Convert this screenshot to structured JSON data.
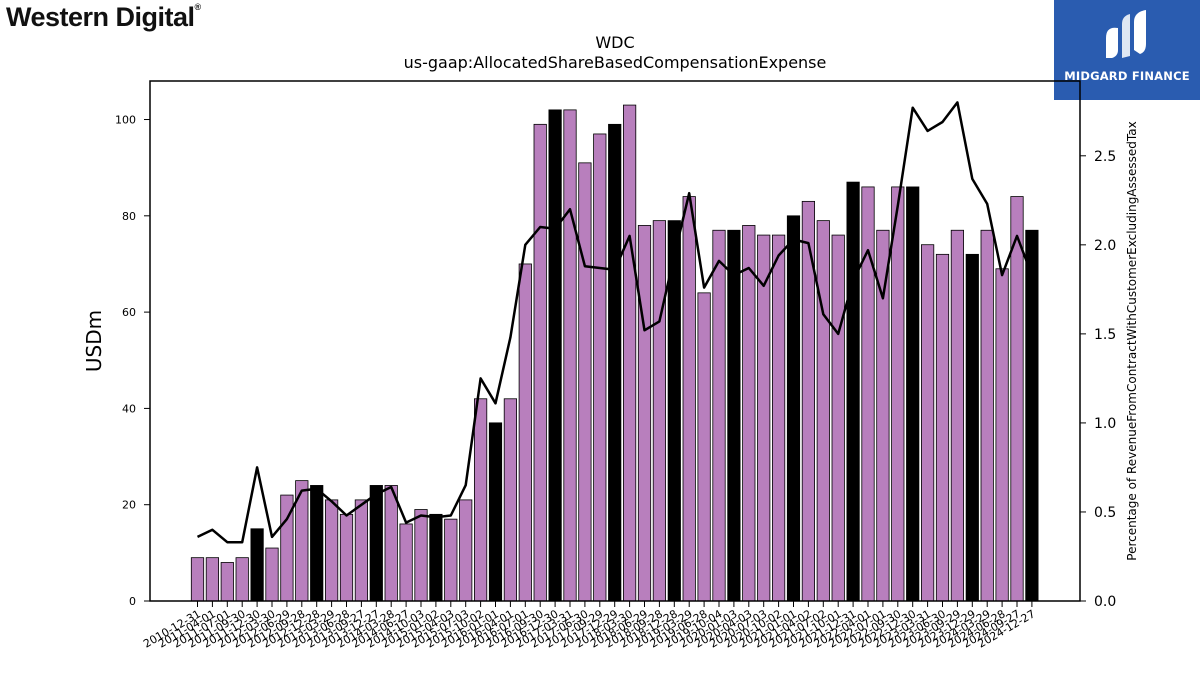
{
  "logo": {
    "company": "Western Digital",
    "company_mark": "®"
  },
  "brand": {
    "name": "MIDGARD FINANCE",
    "background": "#2a5cb0"
  },
  "chart_data": {
    "type": "bar",
    "title": "WDC",
    "subtitle": "us-gaap:AllocatedShareBasedCompensationExpense",
    "ylabel": "USDm",
    "y2label": "Percentage of RevenueFromContractWithCustomerExcludingAssessedTax",
    "ylim": [
      0,
      108
    ],
    "y2lim": [
      0,
      2.92
    ],
    "yticks": [
      0,
      20,
      40,
      60,
      80,
      100
    ],
    "y2ticks": [
      "0.0",
      "0.5",
      "1.0",
      "1.5",
      "2.0",
      "2.5"
    ],
    "grid": false,
    "colors": {
      "bar_default": "#b87fbd",
      "bar_highlight": "#000000",
      "line": "#000000"
    },
    "categories": [
      "2010-12-31",
      "2011-04-01",
      "2011-07-01",
      "2011-09-30",
      "2011-12-30",
      "2012-03-30",
      "2012-06-29",
      "2012-09-28",
      "2012-12-28",
      "2013-03-29",
      "2013-06-28",
      "2013-09-27",
      "2013-12-27",
      "2014-03-28",
      "2014-06-27",
      "2014-10-03",
      "2015-01-02",
      "2015-04-03",
      "2015-07-03",
      "2015-10-02",
      "2016-01-01",
      "2016-04-01",
      "2016-07-01",
      "2016-09-30",
      "2016-12-30",
      "2017-03-31",
      "2017-06-30",
      "2017-09-29",
      "2017-12-29",
      "2018-03-30",
      "2018-06-29",
      "2018-09-28",
      "2018-12-28",
      "2019-03-29",
      "2019-06-28",
      "2019-10-04",
      "2020-01-03",
      "2020-04-03",
      "2020-07-03",
      "2020-10-02",
      "2021-01-01",
      "2021-04-02",
      "2021-07-02",
      "2021-10-01",
      "2021-12-31",
      "2022-04-01",
      "2022-07-01",
      "2022-09-30",
      "2022-12-30",
      "2023-03-31",
      "2023-06-30",
      "2023-09-29",
      "2023-12-29",
      "2024-03-29",
      "2024-06-28",
      "2024-09-27",
      "2024-12-27"
    ],
    "series": [
      {
        "kind": "bar",
        "values": [
          9,
          9,
          8,
          9,
          15,
          11,
          22,
          25,
          24,
          21,
          18,
          21,
          24,
          24,
          16,
          19,
          18,
          17,
          21,
          42,
          37,
          42,
          70,
          99,
          102,
          102,
          91,
          97,
          99,
          103,
          78,
          79,
          79,
          84,
          64,
          77,
          77,
          78,
          76,
          76,
          80,
          83,
          79,
          76,
          87,
          86,
          77,
          86,
          86,
          74,
          72,
          77,
          72,
          77,
          69,
          84,
          77
        ],
        "highlight": [
          false,
          false,
          false,
          false,
          true,
          false,
          false,
          false,
          true,
          false,
          false,
          false,
          true,
          false,
          false,
          false,
          true,
          false,
          false,
          false,
          true,
          false,
          false,
          false,
          true,
          false,
          false,
          false,
          true,
          false,
          false,
          false,
          true,
          false,
          false,
          false,
          true,
          false,
          false,
          false,
          true,
          false,
          false,
          false,
          true,
          false,
          false,
          false,
          true,
          false,
          false,
          false,
          true,
          false,
          false,
          false,
          true
        ]
      },
      {
        "kind": "line",
        "axis": "right",
        "values": [
          0.36,
          0.4,
          0.33,
          0.33,
          0.75,
          0.36,
          0.46,
          0.62,
          0.63,
          0.56,
          0.48,
          0.54,
          0.6,
          0.64,
          0.44,
          0.48,
          0.47,
          0.48,
          0.65,
          1.25,
          1.11,
          1.48,
          2.0,
          2.1,
          2.09,
          2.2,
          1.88,
          1.87,
          1.86,
          2.05,
          1.52,
          1.57,
          1.94,
          2.29,
          1.76,
          1.91,
          1.83,
          1.87,
          1.77,
          1.94,
          2.03,
          2.01,
          1.61,
          1.5,
          1.8,
          1.97,
          1.7,
          2.22,
          2.77,
          2.64,
          2.69,
          2.8,
          2.37,
          2.23,
          1.83,
          2.05,
          1.83
        ]
      }
    ]
  }
}
